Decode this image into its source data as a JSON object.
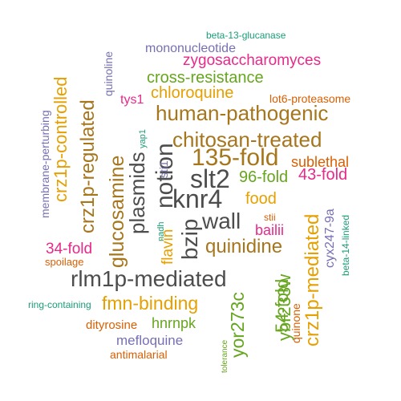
{
  "palette": {
    "gray": "#4d4d4d",
    "brown": "#a6761d",
    "orange": "#e6a000",
    "green": "#66a61e",
    "magenta": "#e7298a",
    "purple": "#7570b3",
    "teal": "#1b9e77",
    "rust": "#d95f02"
  },
  "words": [
    {
      "id": "beta-13-glucanase",
      "text": "beta-13-glucanase"
    },
    {
      "id": "mononucleotide",
      "text": "mononucleotide"
    },
    {
      "id": "zygosaccharomyces",
      "text": "zygosaccharomyces"
    },
    {
      "id": "quinoline",
      "text": "quinoline"
    },
    {
      "id": "cross-resistance",
      "text": "cross-resistance"
    },
    {
      "id": "chloroquine",
      "text": "chloroquine"
    },
    {
      "id": "lot6-proteasome",
      "text": "lot6-proteasome"
    },
    {
      "id": "tys1",
      "text": "tys1"
    },
    {
      "id": "human-pathogenic",
      "text": "human-pathogenic"
    },
    {
      "id": "crz1p-controlled",
      "text": "crz1p-controlled"
    },
    {
      "id": "membrane-perturbing",
      "text": "membrane-perturbing"
    },
    {
      "id": "crz1p-regulated",
      "text": "crz1p-regulated"
    },
    {
      "id": "glucosamine",
      "text": "glucosamine"
    },
    {
      "id": "yap1",
      "text": "yap1"
    },
    {
      "id": "chitosan-treated",
      "text": "chitosan-treated"
    },
    {
      "id": "notion",
      "text": "notion"
    },
    {
      "id": "plasmids",
      "text": "plasmids"
    },
    {
      "id": "135-fold",
      "text": "135-fold"
    },
    {
      "id": "sublethal",
      "text": "sublethal"
    },
    {
      "id": "sti1",
      "text": "sti1"
    },
    {
      "id": "slt2",
      "text": "slt2"
    },
    {
      "id": "96-fold",
      "text": "96-fold"
    },
    {
      "id": "43-fold",
      "text": "43-fold"
    },
    {
      "id": "knr4",
      "text": "knr4"
    },
    {
      "id": "food",
      "text": "food"
    },
    {
      "id": "wall",
      "text": "wall"
    },
    {
      "id": "bzip",
      "text": "bzip"
    },
    {
      "id": "stii",
      "text": "stii"
    },
    {
      "id": "bailii",
      "text": "bailii"
    },
    {
      "id": "nadh",
      "text": "nadh"
    },
    {
      "id": "flavin",
      "text": "flavin"
    },
    {
      "id": "beta-14-linked",
      "text": "beta-14-linked"
    },
    {
      "id": "cyx247-9a",
      "text": "cyx247-9a"
    },
    {
      "id": "34-fold",
      "text": "34-fold"
    },
    {
      "id": "quinidine",
      "text": "quinidine"
    },
    {
      "id": "spoilage",
      "text": "spoilage"
    },
    {
      "id": "crz1p-mediated",
      "text": "crz1p-mediated"
    },
    {
      "id": "rlm1p-mediated",
      "text": "rlm1p-mediated"
    },
    {
      "id": "ybr233w",
      "text": "ybr233w"
    },
    {
      "id": "ring-containing",
      "text": "ring-containing"
    },
    {
      "id": "fmn-binding",
      "text": "fmn-binding"
    },
    {
      "id": "54-fold",
      "text": "54-fold"
    },
    {
      "id": "quinone",
      "text": "quinone"
    },
    {
      "id": "yor273c",
      "text": "yor273c"
    },
    {
      "id": "dityrosine",
      "text": "dityrosine"
    },
    {
      "id": "hnrnpk",
      "text": "hnrnpk"
    },
    {
      "id": "mefloquine",
      "text": "mefloquine"
    },
    {
      "id": "tolerance",
      "text": "tolerance"
    },
    {
      "id": "antimalarial",
      "text": "antimalarial"
    }
  ]
}
